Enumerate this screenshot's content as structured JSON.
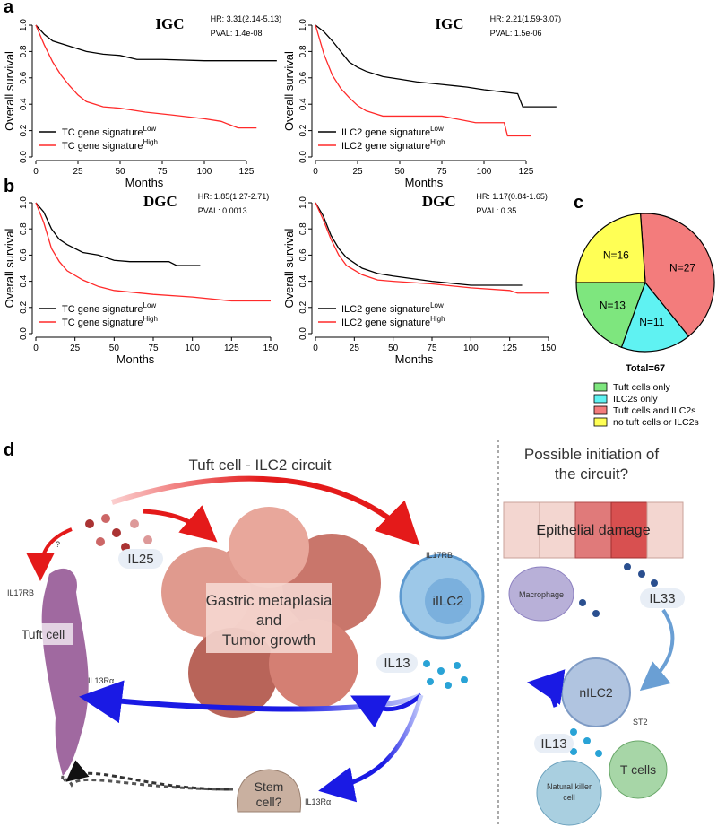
{
  "panel_labels": [
    "a",
    "b",
    "c",
    "d"
  ],
  "chart_data": [
    {
      "type": "line",
      "title": "IGC",
      "annotations": [
        "HR: 3.31(2.14-5.13)",
        "PVAL: 1.4e-08"
      ],
      "xlabel": "Months",
      "ylabel": "Overall survival",
      "xlim": [
        0,
        150
      ],
      "ylim": [
        0,
        1
      ],
      "xticks": [
        0,
        25,
        50,
        75,
        100,
        125
      ],
      "yticks": [
        {
          "value": 0,
          "label": "0.0"
        },
        0.2,
        0.4,
        0.6,
        0.8,
        {
          "value": 1,
          "label": "1.0"
        }
      ],
      "series": [
        {
          "name": "TC gene signature",
          "name_sup": "Low",
          "color": "#000000",
          "x": [
            0,
            5,
            10,
            20,
            30,
            40,
            50,
            60,
            75,
            100,
            143
          ],
          "values": [
            1,
            0.93,
            0.88,
            0.84,
            0.8,
            0.78,
            0.77,
            0.74,
            0.74,
            0.73,
            0.73
          ]
        },
        {
          "name": "TC gene signature",
          "name_sup": "High",
          "color": "#ff2a2a",
          "x": [
            0,
            5,
            10,
            15,
            20,
            25,
            30,
            40,
            50,
            65,
            80,
            100,
            110,
            120,
            131
          ],
          "values": [
            1,
            0.85,
            0.72,
            0.62,
            0.54,
            0.47,
            0.42,
            0.38,
            0.37,
            0.34,
            0.32,
            0.29,
            0.27,
            0.22,
            0.22
          ]
        }
      ]
    },
    {
      "type": "line",
      "title": "IGC",
      "annotations": [
        "HR: 2.21(1.59-3.07)",
        "PVAL: 1.5e-06"
      ],
      "xlabel": "Months",
      "ylabel": "Overall survival",
      "xlim": [
        0,
        150
      ],
      "ylim": [
        0,
        1
      ],
      "xticks": [
        0,
        25,
        50,
        75,
        100,
        125
      ],
      "yticks": [
        {
          "value": 0,
          "label": "0.0"
        },
        0.2,
        0.4,
        0.6,
        0.8,
        {
          "value": 1,
          "label": "1.0"
        }
      ],
      "series": [
        {
          "name": "ILC2 gene signature",
          "name_sup": "Low",
          "color": "#000000",
          "x": [
            0,
            5,
            10,
            15,
            20,
            25,
            30,
            40,
            50,
            60,
            75,
            90,
            100,
            120,
            123,
            143
          ],
          "values": [
            1,
            0.95,
            0.88,
            0.8,
            0.72,
            0.68,
            0.65,
            0.61,
            0.59,
            0.57,
            0.55,
            0.53,
            0.51,
            0.48,
            0.38,
            0.38
          ]
        },
        {
          "name": "ILC2 gene signature",
          "name_sup": "High",
          "color": "#ff2a2a",
          "x": [
            0,
            5,
            10,
            15,
            20,
            25,
            30,
            40,
            50,
            75,
            95,
            112,
            114,
            128
          ],
          "values": [
            1,
            0.78,
            0.62,
            0.52,
            0.45,
            0.39,
            0.35,
            0.31,
            0.31,
            0.31,
            0.26,
            0.26,
            0.16,
            0.16
          ]
        }
      ]
    },
    {
      "type": "line",
      "title": "DGC",
      "annotations": [
        "HR: 1.85(1.27-2.71)",
        "PVAL: 0.0013"
      ],
      "xlabel": "Months",
      "ylabel": "Overall survival",
      "xlim": [
        0,
        150
      ],
      "ylim": [
        0,
        1
      ],
      "xticks": [
        0,
        25,
        50,
        75,
        100,
        125,
        150
      ],
      "yticks": [
        {
          "value": 0,
          "label": "0.0"
        },
        0.2,
        0.4,
        0.6,
        0.8,
        {
          "value": 1,
          "label": "1.0"
        }
      ],
      "series": [
        {
          "name": "TC gene signature",
          "name_sup": "Low",
          "color": "#000000",
          "x": [
            0,
            5,
            10,
            15,
            20,
            30,
            40,
            50,
            60,
            85,
            90,
            105
          ],
          "values": [
            1,
            0.93,
            0.8,
            0.72,
            0.68,
            0.62,
            0.6,
            0.56,
            0.55,
            0.55,
            0.52,
            0.52
          ]
        },
        {
          "name": "TC gene signature",
          "name_sup": "High",
          "color": "#ff2a2a",
          "x": [
            0,
            5,
            10,
            15,
            20,
            30,
            40,
            50,
            75,
            100,
            125,
            150
          ],
          "values": [
            1,
            0.85,
            0.65,
            0.55,
            0.48,
            0.41,
            0.36,
            0.33,
            0.3,
            0.28,
            0.25,
            0.25
          ]
        }
      ]
    },
    {
      "type": "line",
      "title": "DGC",
      "annotations": [
        "HR: 1.17(0.84-1.65)",
        "PVAL: 0.35"
      ],
      "xlabel": "Months",
      "ylabel": "Overall survival",
      "xlim": [
        0,
        150
      ],
      "ylim": [
        0,
        1
      ],
      "xticks": [
        0,
        25,
        50,
        75,
        100,
        125,
        150
      ],
      "yticks": [
        {
          "value": 0,
          "label": "0.0"
        },
        0.2,
        0.4,
        0.6,
        0.8,
        {
          "value": 1,
          "label": "1.0"
        }
      ],
      "series": [
        {
          "name": "ILC2 gene signature",
          "name_sup": "Low",
          "color": "#000000",
          "x": [
            0,
            5,
            10,
            15,
            20,
            30,
            40,
            50,
            75,
            100,
            133
          ],
          "values": [
            1,
            0.9,
            0.75,
            0.65,
            0.58,
            0.5,
            0.46,
            0.44,
            0.4,
            0.37,
            0.37
          ]
        },
        {
          "name": "ILC2 gene signature",
          "name_sup": "High",
          "color": "#ff2a2a",
          "x": [
            0,
            5,
            10,
            15,
            20,
            30,
            40,
            50,
            75,
            100,
            125,
            130,
            150
          ],
          "values": [
            1,
            0.87,
            0.72,
            0.6,
            0.52,
            0.45,
            0.41,
            0.4,
            0.38,
            0.35,
            0.33,
            0.31,
            0.31
          ]
        }
      ]
    },
    {
      "type": "pie",
      "total_label": "Total=67",
      "categories": [
        "Tuft cells only",
        "ILC2s only",
        "Tuft cells and ILC2s",
        "no tuft cells or ILC2s"
      ],
      "values": [
        13,
        11,
        27,
        16
      ],
      "value_labels": [
        "N=13",
        "N=11",
        "N=27",
        "N=16"
      ],
      "colors": [
        "#7ee67e",
        "#5ff2f2",
        "#f37c7c",
        "#ffff55"
      ]
    }
  ],
  "diagram": {
    "left_title": "Tuft cell - ILC2 circuit",
    "right_title": [
      "Possible initiation of",
      "the circuit?"
    ],
    "il25": "IL25",
    "question": "?",
    "tuft_receptor": "IL17RB",
    "tuft_cell": "Tuft cell",
    "tuft_il13r": "IL13Rα",
    "tumor": [
      "Gastric metaplasia",
      "and",
      "Tumor growth"
    ],
    "iilc2_receptor": "IL17RB",
    "iilc2": "iILC2",
    "il13_left": "IL13",
    "stem_cell": [
      "Stem",
      "cell?"
    ],
    "stem_receptor": "IL13Rα",
    "epithelial_damage": "Epithelial damage",
    "macrophage": "Macrophage",
    "il33": "IL33",
    "nilc2": "nILC2",
    "st2": "ST2",
    "il13_right": "IL13",
    "t_cells": "T cells",
    "nk_cell": [
      "Natural killer",
      "cell"
    ]
  }
}
